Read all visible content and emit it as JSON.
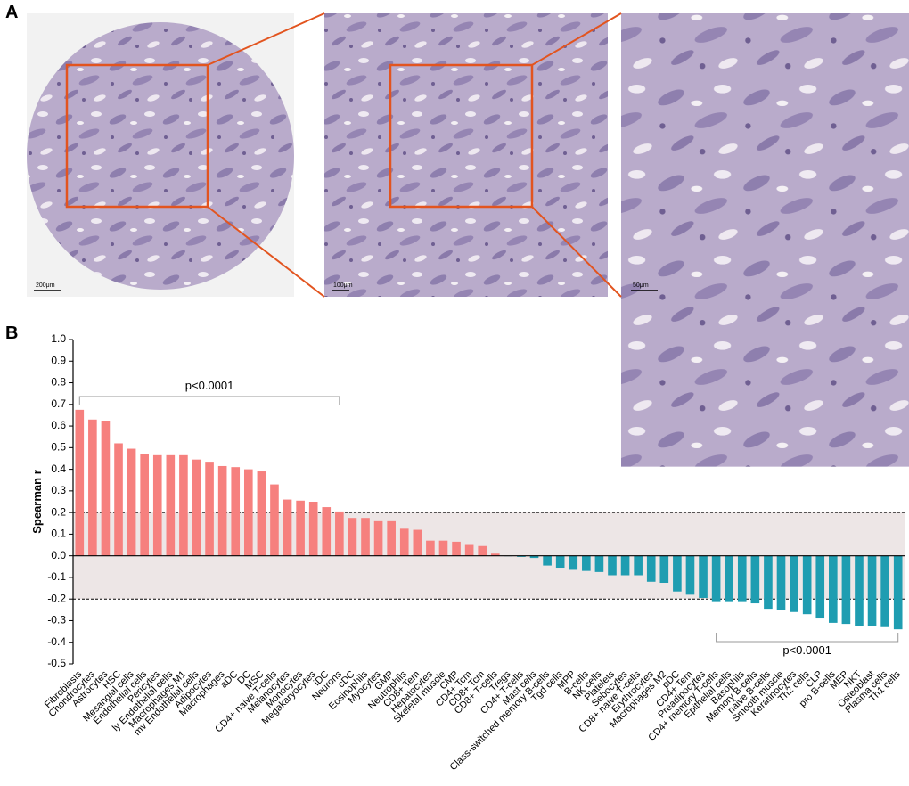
{
  "panel_labels": [
    "A",
    "B"
  ],
  "scale_bars": [
    "200μm",
    "100μm",
    "50μm"
  ],
  "chart_data": {
    "type": "bar",
    "ylabel": "Spearman r",
    "categories": [
      "Fibroblasts",
      "Chondrocytes",
      "Astrocytes",
      "HSC",
      "Mesangial cells",
      "Endothelial cells",
      "Pericytes",
      "ly Endothelial cells",
      "Macrophages M1",
      "mv Endothelial cells",
      "Adipocytes",
      "Macrophages",
      "aDC",
      "DC",
      "MSC",
      "CD4+ naive T-cells",
      "Melanocytes",
      "Monocytes",
      "Megakaryocytes",
      "iDC",
      "Neurons",
      "cDC",
      "Eosinophils",
      "Myocytes",
      "GMP",
      "Neutrophils",
      "CD8+ Tem",
      "Hepatocytes",
      "Skeletal muscle",
      "CMP",
      "CD4+ Tcm",
      "CD8+ Tcm",
      "CD8+ T-cells",
      "Tregs",
      "CD4+ T-cells",
      "Mast cells",
      "Class-switched memory B-cells",
      "Tgd cells",
      "MPP",
      "B-cells",
      "NK cells",
      "Platelets",
      "Sebocytes",
      "CD8+ naive T-cells",
      "Erythrocytes",
      "Macrophages M2",
      "pDC",
      "CD4+ Tem",
      "Preadipocytes",
      "CD4+ memory T-cells",
      "Epithelial cells",
      "Basophils",
      "Memory B-cells",
      "naive B-cells",
      "Smooth muscle",
      "Keratinocytes",
      "Th2 cells",
      "CLP",
      "pro B-cells",
      "MEP",
      "NKT",
      "Osteoblast",
      "Plasma cells",
      "Th1 cells"
    ],
    "values": [
      0.675,
      0.63,
      0.625,
      0.52,
      0.495,
      0.47,
      0.465,
      0.465,
      0.465,
      0.445,
      0.435,
      0.415,
      0.41,
      0.4,
      0.39,
      0.33,
      0.26,
      0.255,
      0.25,
      0.225,
      0.205,
      0.175,
      0.175,
      0.16,
      0.16,
      0.125,
      0.12,
      0.07,
      0.07,
      0.065,
      0.05,
      0.045,
      0.01,
      -0.002,
      -0.005,
      -0.01,
      -0.045,
      -0.055,
      -0.065,
      -0.07,
      -0.075,
      -0.09,
      -0.09,
      -0.09,
      -0.12,
      -0.125,
      -0.165,
      -0.18,
      -0.195,
      -0.21,
      -0.21,
      -0.21,
      -0.22,
      -0.245,
      -0.25,
      -0.26,
      -0.27,
      -0.29,
      -0.31,
      -0.315,
      -0.325,
      -0.325,
      -0.33,
      -0.34
    ],
    "colors": {
      "positive": "#f6807e",
      "negative": "#1f9db1"
    },
    "ylim": [
      -0.5,
      1.0
    ],
    "yticks": [
      {
        "value": 1.0,
        "label": "1.0"
      },
      0.9,
      0.8,
      0.7,
      0.6,
      0.5,
      0.4,
      0.3,
      0.2,
      0.1,
      {
        "value": 0,
        "label": "0.0"
      },
      -0.1,
      -0.2,
      -0.3,
      -0.4,
      -0.5
    ],
    "reference_lines": [
      0.2,
      -0.2
    ],
    "annotations": [
      "p<0.0001",
      "p<0.0001"
    ]
  }
}
